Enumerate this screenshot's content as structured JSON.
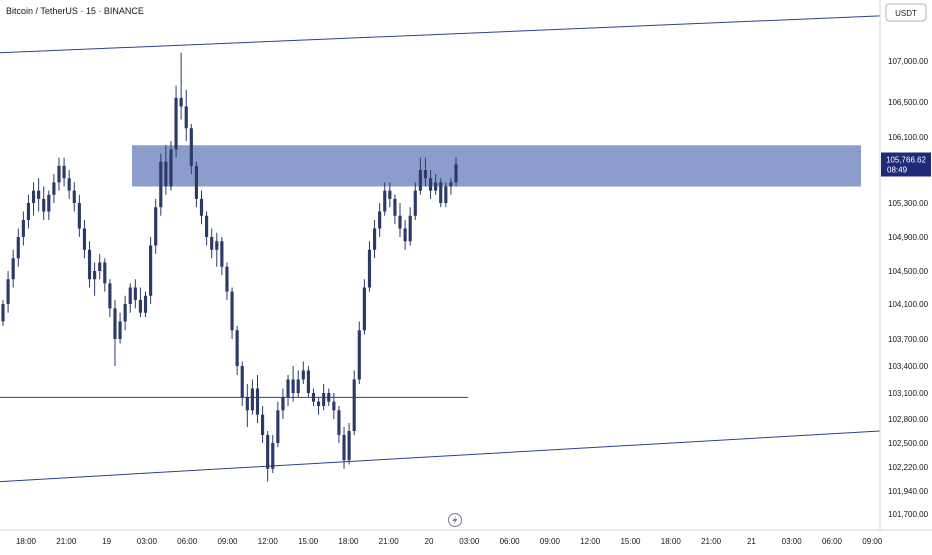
{
  "header": {
    "symbol_title": "Bitcoin / TetherUS · 15 · BINANCE",
    "currency_button": "USDT"
  },
  "price_badge": {
    "price": "105,766.62",
    "countdown": "08:49",
    "color": "#1e2a78"
  },
  "zone_color": "#6b80bd",
  "line_color": "#2e3f8f",
  "candle_color": "#2b3a67",
  "footer_icon": "lightning-icon",
  "chart_data": {
    "type": "candlestick",
    "title": "Bitcoin / TetherUS · 15 · BINANCE",
    "y_ticks": [
      "107,000.00",
      "106,500.00",
      "106,100.00",
      "105,300.00",
      "104,900.00",
      "104,500.00",
      "104,100.00",
      "103,700.00",
      "103,400.00",
      "103,100.00",
      "102,800.00",
      "102,500.00",
      "102,220.00",
      "101,940.00",
      "101,700.00"
    ],
    "x_ticks": [
      "18:00",
      "21:00",
      "19",
      "03:00",
      "06:00",
      "09:00",
      "12:00",
      "15:00",
      "18:00",
      "21:00",
      "20",
      "03:00",
      "06:00",
      "09:00",
      "12:00",
      "15:00",
      "18:00",
      "21:00",
      "21",
      "03:00",
      "06:00",
      "09:00"
    ],
    "last_price": 105766.62,
    "supply_zone": {
      "from": 105500,
      "to": 106000
    },
    "horizontal_line": 103050,
    "trendlines": [
      {
        "from": [
          "18:00",
          107100
        ],
        "to": [
          "09:00",
          107550
        ]
      },
      {
        "from": [
          "18:00",
          102050
        ],
        "to": [
          "09:00",
          102650
        ]
      }
    ],
    "candles": [
      [
        103900,
        104150,
        103850,
        104100
      ],
      [
        104100,
        104500,
        104000,
        104400
      ],
      [
        104400,
        104750,
        104300,
        104650
      ],
      [
        104650,
        105000,
        104550,
        104900
      ],
      [
        104900,
        105200,
        104800,
        105100
      ],
      [
        105100,
        105400,
        105000,
        105300
      ],
      [
        105300,
        105550,
        105150,
        105450
      ],
      [
        105450,
        105600,
        105200,
        105350
      ],
      [
        105350,
        105500,
        105100,
        105200
      ],
      [
        105200,
        105450,
        105100,
        105400
      ],
      [
        105400,
        105650,
        105300,
        105550
      ],
      [
        105550,
        105850,
        105450,
        105750
      ],
      [
        105750,
        105850,
        105500,
        105600
      ],
      [
        105600,
        105700,
        105350,
        105450
      ],
      [
        105450,
        105550,
        105200,
        105300
      ],
      [
        105300,
        105400,
        104900,
        105000
      ],
      [
        105000,
        105100,
        104650,
        104750
      ],
      [
        104750,
        104850,
        104300,
        104400
      ],
      [
        104400,
        104600,
        104200,
        104500
      ],
      [
        104500,
        104700,
        104400,
        104600
      ],
      [
        104600,
        104650,
        104250,
        104350
      ],
      [
        104350,
        104400,
        103950,
        104050
      ],
      [
        104050,
        104150,
        103400,
        103700
      ],
      [
        103700,
        104000,
        103650,
        103900
      ],
      [
        103900,
        104200,
        103800,
        104100
      ],
      [
        104100,
        104350,
        104000,
        104300
      ],
      [
        104300,
        104400,
        104050,
        104150
      ],
      [
        104150,
        104300,
        103950,
        104000
      ],
      [
        104000,
        104250,
        103950,
        104200
      ],
      [
        104200,
        104900,
        104100,
        104800
      ],
      [
        104800,
        105350,
        104700,
        105250
      ],
      [
        105250,
        105900,
        105150,
        105800
      ],
      [
        105800,
        106000,
        105400,
        105500
      ],
      [
        105500,
        106050,
        105450,
        105950
      ],
      [
        105950,
        106700,
        105850,
        106550
      ],
      [
        106550,
        107100,
        106300,
        106450
      ],
      [
        106450,
        106650,
        106050,
        106200
      ],
      [
        106200,
        106250,
        105650,
        105750
      ],
      [
        105750,
        105800,
        105250,
        105350
      ],
      [
        105350,
        105450,
        105050,
        105150
      ],
      [
        105150,
        105200,
        104800,
        104900
      ],
      [
        104900,
        105000,
        104650,
        104750
      ],
      [
        104750,
        104950,
        104550,
        104850
      ],
      [
        104850,
        104900,
        104450,
        104550
      ],
      [
        104550,
        104600,
        104150,
        104250
      ],
      [
        104250,
        104300,
        103700,
        103800
      ],
      [
        103800,
        103850,
        103300,
        103400
      ],
      [
        103400,
        103450,
        102950,
        103050
      ],
      [
        103050,
        103200,
        102700,
        102900
      ],
      [
        102900,
        103250,
        102850,
        103150
      ],
      [
        103150,
        103300,
        102750,
        102850
      ],
      [
        102850,
        102950,
        102500,
        102600
      ],
      [
        102600,
        102650,
        102050,
        102200
      ],
      [
        102200,
        102600,
        102150,
        102500
      ],
      [
        102500,
        103000,
        102450,
        102900
      ],
      [
        102900,
        103150,
        102800,
        103050
      ],
      [
        103050,
        103300,
        102950,
        103250
      ],
      [
        103250,
        103400,
        103000,
        103100
      ],
      [
        103100,
        103350,
        103050,
        103250
      ],
      [
        103250,
        103450,
        103200,
        103350
      ],
      [
        103350,
        103400,
        103050,
        103100
      ],
      [
        103100,
        103150,
        102950,
        103000
      ],
      [
        103000,
        103050,
        102850,
        102950
      ],
      [
        102950,
        103200,
        102900,
        103100
      ],
      [
        103100,
        103150,
        102950,
        103000
      ],
      [
        103000,
        103100,
        102800,
        102900
      ],
      [
        102900,
        102950,
        102500,
        102600
      ],
      [
        102600,
        102700,
        102200,
        102300
      ],
      [
        102300,
        102750,
        102250,
        102650
      ],
      [
        102650,
        103350,
        102600,
        103250
      ],
      [
        103250,
        103900,
        103200,
        103800
      ],
      [
        103800,
        104400,
        103750,
        104300
      ],
      [
        104300,
        104850,
        104250,
        104750
      ],
      [
        104750,
        105100,
        104650,
        105000
      ],
      [
        105000,
        105300,
        104900,
        105200
      ],
      [
        105200,
        105550,
        105150,
        105450
      ],
      [
        105450,
        105550,
        105250,
        105350
      ],
      [
        105350,
        105400,
        105050,
        105150
      ],
      [
        105150,
        105300,
        104900,
        105000
      ],
      [
        105000,
        105100,
        104750,
        104850
      ],
      [
        104850,
        105250,
        104800,
        105150
      ],
      [
        105150,
        105550,
        105100,
        105450
      ],
      [
        105450,
        105850,
        105400,
        105700
      ],
      [
        105700,
        105850,
        105500,
        105600
      ],
      [
        105600,
        105700,
        105350,
        105450
      ],
      [
        105450,
        105650,
        105400,
        105550
      ],
      [
        105550,
        105600,
        105250,
        105300
      ],
      [
        105300,
        105550,
        105250,
        105500
      ],
      [
        105500,
        105600,
        105400,
        105550
      ],
      [
        105550,
        105850,
        105500,
        105767
      ]
    ]
  }
}
